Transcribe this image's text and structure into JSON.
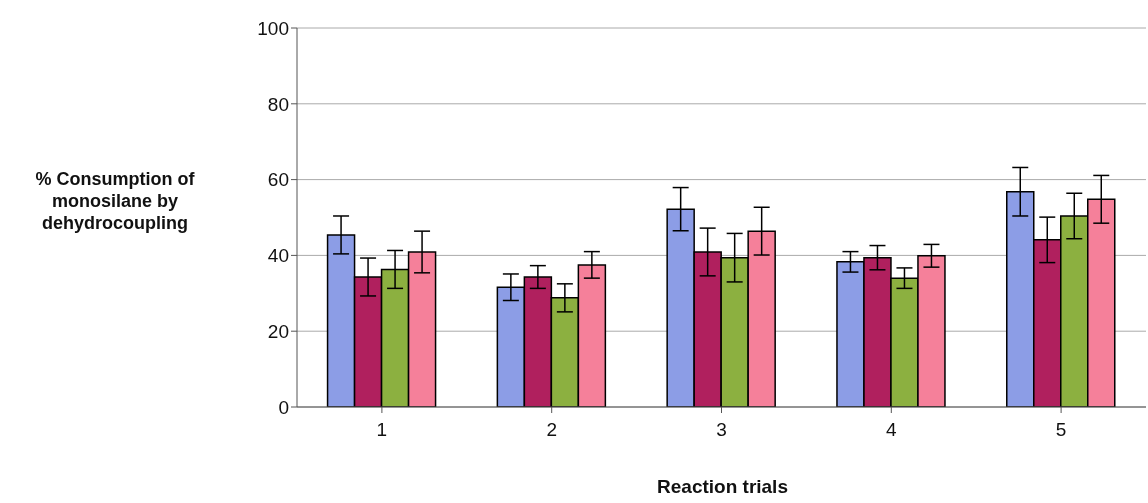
{
  "chart_data": {
    "type": "bar",
    "xlabel": "Reaction trials",
    "ylabel": "% Consumption of monosilane by dehydrocoupling",
    "categories": [
      "1",
      "2",
      "3",
      "4",
      "5"
    ],
    "ylim": [
      0,
      100
    ],
    "yticks": [
      0,
      20,
      40,
      60,
      80,
      100
    ],
    "grid": "y",
    "legend": false,
    "series": [
      {
        "color": "#8c9de6",
        "values": [
          45.4,
          31.6,
          52.2,
          38.3,
          56.8
        ],
        "errors": [
          5,
          3.5,
          5.7,
          2.7,
          6.4
        ]
      },
      {
        "color": "#b0205e",
        "values": [
          34.3,
          34.3,
          40.9,
          39.4,
          44.1
        ],
        "errors": [
          5,
          3,
          6.3,
          3.2,
          6
        ]
      },
      {
        "color": "#8cb040",
        "values": [
          36.3,
          28.8,
          39.4,
          34,
          50.4
        ],
        "errors": [
          5,
          3.7,
          6.4,
          2.7,
          6
        ]
      },
      {
        "color": "#f5809a",
        "values": [
          40.9,
          37.5,
          46.4,
          39.9,
          54.8
        ],
        "errors": [
          5.5,
          3.5,
          6.3,
          3,
          6.3
        ]
      }
    ]
  }
}
